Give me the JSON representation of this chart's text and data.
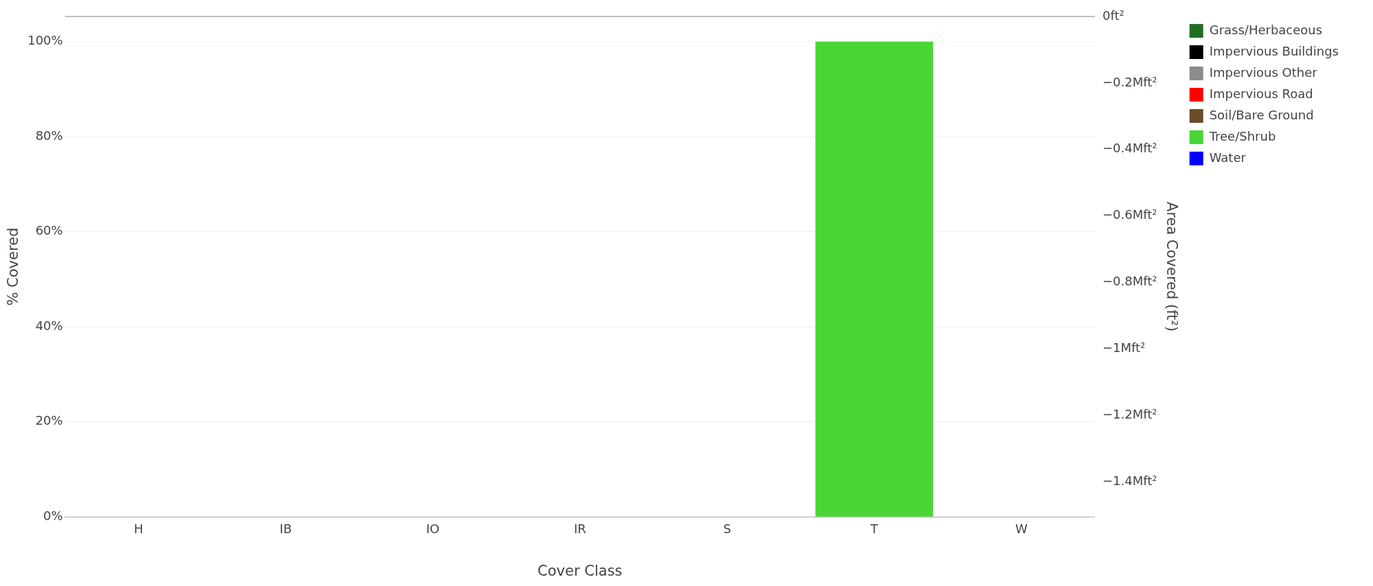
{
  "chart_data": {
    "type": "bar",
    "xlabel": "Cover Class",
    "ylabel": "% Covered",
    "y2label": "Area Covered (ft²)",
    "categories": [
      "H",
      "IB",
      "IO",
      "IR",
      "S",
      "T",
      "W"
    ],
    "series": [
      {
        "name": "Grass/Herbaceous",
        "color": "#1f6e1f",
        "values": [
          0,
          null,
          null,
          null,
          null,
          null,
          null
        ]
      },
      {
        "name": "Impervious Buildings",
        "color": "#000000",
        "values": [
          null,
          0,
          null,
          null,
          null,
          null,
          null
        ]
      },
      {
        "name": "Impervious Other",
        "color": "#8c8c8c",
        "values": [
          null,
          null,
          0,
          null,
          null,
          null,
          null
        ]
      },
      {
        "name": "Impervious Road",
        "color": "#ff0000",
        "values": [
          null,
          null,
          null,
          0,
          null,
          null,
          null
        ]
      },
      {
        "name": "Soil/Bare Ground",
        "color": "#6b4c2a",
        "values": [
          null,
          null,
          null,
          null,
          0,
          null,
          null
        ]
      },
      {
        "name": "Tree/Shrub",
        "color": "#49d634",
        "values": [
          null,
          null,
          null,
          null,
          null,
          100,
          null
        ]
      },
      {
        "name": "Water",
        "color": "#0000ff",
        "values": [
          null,
          null,
          null,
          null,
          null,
          null,
          0
        ]
      }
    ],
    "ylim": [
      0,
      105.3
    ],
    "yticks": [
      {
        "value": 0,
        "label": "0%"
      },
      {
        "value": 20,
        "label": "20%"
      },
      {
        "value": 40,
        "label": "40%"
      },
      {
        "value": 60,
        "label": "60%"
      },
      {
        "value": 80,
        "label": "80%"
      },
      {
        "value": 100,
        "label": "100%"
      }
    ],
    "y2lim": [
      -1.506,
      0
    ],
    "y2ticks": [
      {
        "value": 0,
        "label": "0ft²"
      },
      {
        "value": -0.2,
        "label": "−0.2Mft²"
      },
      {
        "value": -0.4,
        "label": "−0.4Mft²"
      },
      {
        "value": -0.6,
        "label": "−0.6Mft²"
      },
      {
        "value": -0.8,
        "label": "−0.8Mft²"
      },
      {
        "value": -1,
        "label": "−1Mft²"
      },
      {
        "value": -1.2,
        "label": "−1.2Mft²"
      },
      {
        "value": -1.4,
        "label": "−1.4Mft²"
      }
    ],
    "grid": "y",
    "legend": "top right"
  }
}
